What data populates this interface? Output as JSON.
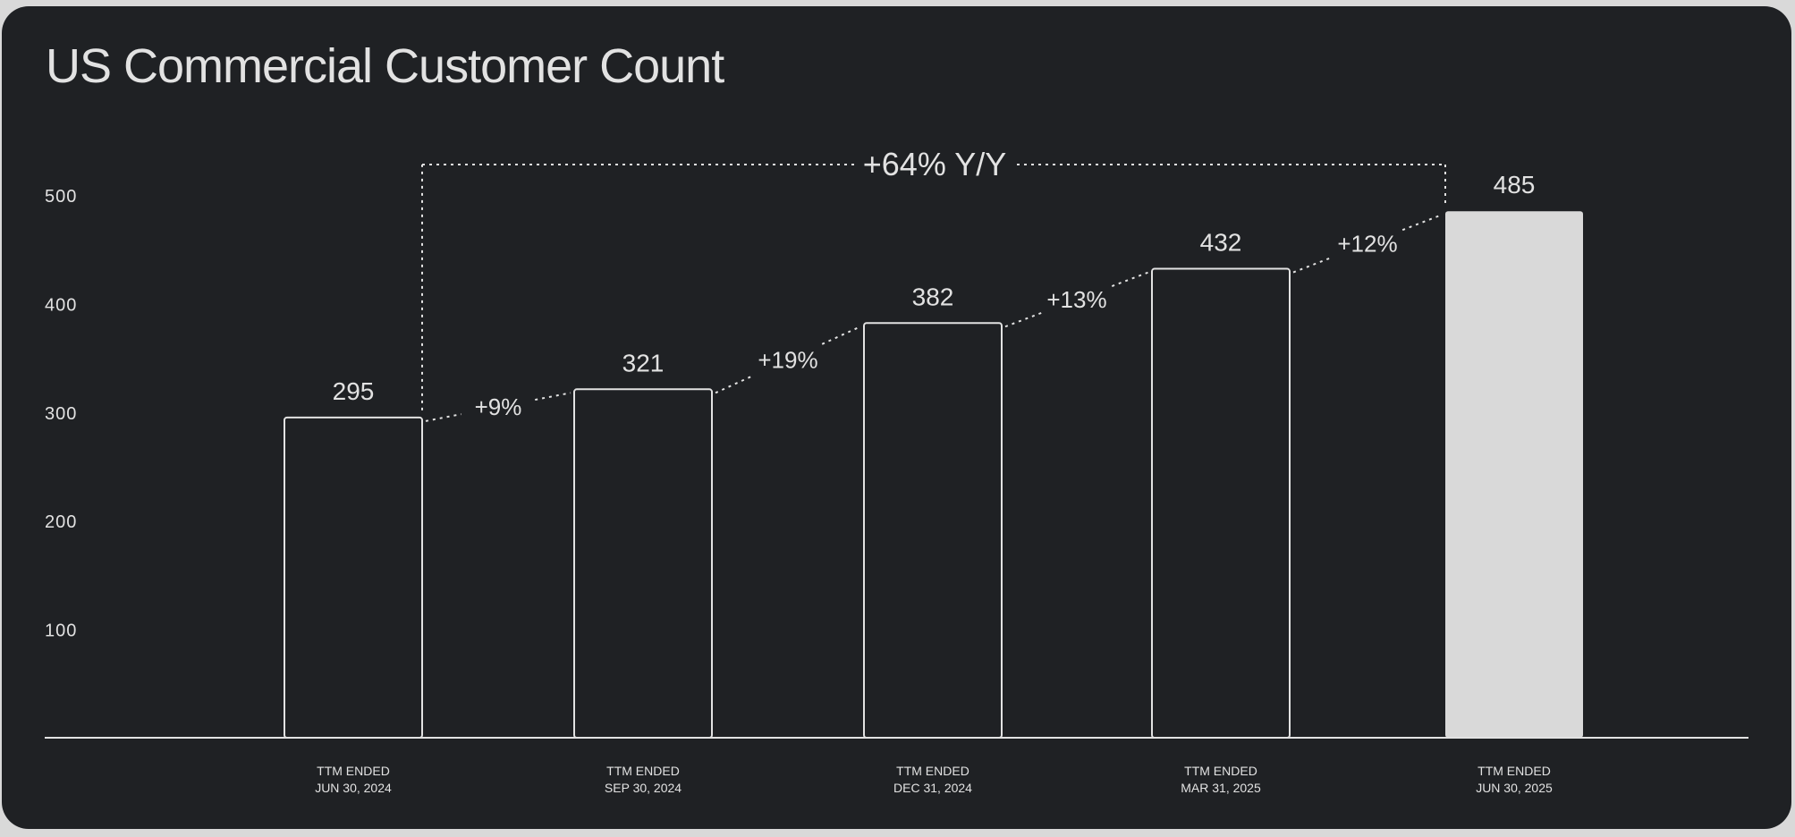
{
  "title": "US Commercial Customer Count",
  "chart_data": {
    "type": "bar",
    "categories": [
      [
        "TTM ENDED",
        "JUN 30, 2024"
      ],
      [
        "TTM ENDED",
        "SEP 30, 2024"
      ],
      [
        "TTM ENDED",
        "DEC 31, 2024"
      ],
      [
        "TTM ENDED",
        "MAR 31, 2025"
      ],
      [
        "TTM ENDED",
        "JUN 30, 2025"
      ]
    ],
    "values": [
      295,
      321,
      382,
      432,
      485
    ],
    "data_labels": [
      "295",
      "321",
      "382",
      "432",
      "485"
    ],
    "growth_labels": [
      "+9%",
      "+19%",
      "+13%",
      "+12%"
    ],
    "overall_growth_label": "+64% Y/Y",
    "ylim": [
      0,
      500
    ],
    "yticks": [
      100,
      200,
      300,
      400,
      500
    ],
    "highlighted_index": 4,
    "grid": false,
    "legend": "none"
  },
  "colors": {
    "background": "#1f2124",
    "text": "#e2e2e2",
    "bar_outline": "#e2e2e2",
    "bar_highlight_fill": "#d9d9d9"
  }
}
